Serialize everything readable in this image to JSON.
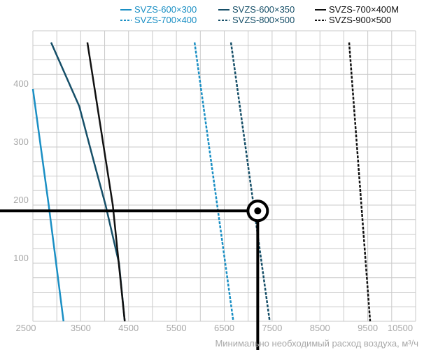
{
  "chart_data": {
    "type": "line",
    "title": "",
    "xlabel": "Минимально необходимый расход воздуха, м³/ч",
    "ylabel": "",
    "xlim": [
      2500,
      10500
    ],
    "ylim": [
      0,
      500
    ],
    "x_ticks": [
      "2500",
      "3500",
      "4500",
      "5500",
      "6500",
      "7500",
      "8500",
      "9500",
      "10500"
    ],
    "y_ticks": [
      "100",
      "200",
      "300",
      "400"
    ],
    "grid": true,
    "legend_position": "top",
    "series": [
      {
        "name": "SVZS-600×300",
        "color": "#1a8fc4",
        "dash": "solid",
        "points": [
          [
            2500,
            400
          ],
          [
            2830,
            200
          ],
          [
            3140,
            0
          ]
        ]
      },
      {
        "name": "SVZS-600×350",
        "color": "#164f68",
        "dash": "solid",
        "points": [
          [
            2880,
            480
          ],
          [
            3470,
            370
          ],
          [
            3790,
            270
          ],
          [
            4020,
            200
          ],
          [
            4300,
            100
          ],
          [
            4420,
            0
          ]
        ]
      },
      {
        "name": "SVZS-700×400M",
        "color": "#111111",
        "dash": "solid",
        "points": [
          [
            3640,
            480
          ],
          [
            4170,
            200
          ],
          [
            4420,
            0
          ]
        ]
      },
      {
        "name": "SVZS-700×400",
        "color": "#1a8fc4",
        "dash": "dashed",
        "points": [
          [
            5880,
            480
          ],
          [
            6690,
            0
          ]
        ]
      },
      {
        "name": "SVZS-800×500",
        "color": "#164f68",
        "dash": "dashed",
        "points": [
          [
            6640,
            480
          ],
          [
            7450,
            0
          ]
        ]
      },
      {
        "name": "SVZS-900×500",
        "color": "#111111",
        "dash": "dashed",
        "points": [
          [
            9110,
            480
          ],
          [
            9550,
            0
          ]
        ]
      }
    ],
    "marker": {
      "x": 7200,
      "y": 190
    }
  }
}
